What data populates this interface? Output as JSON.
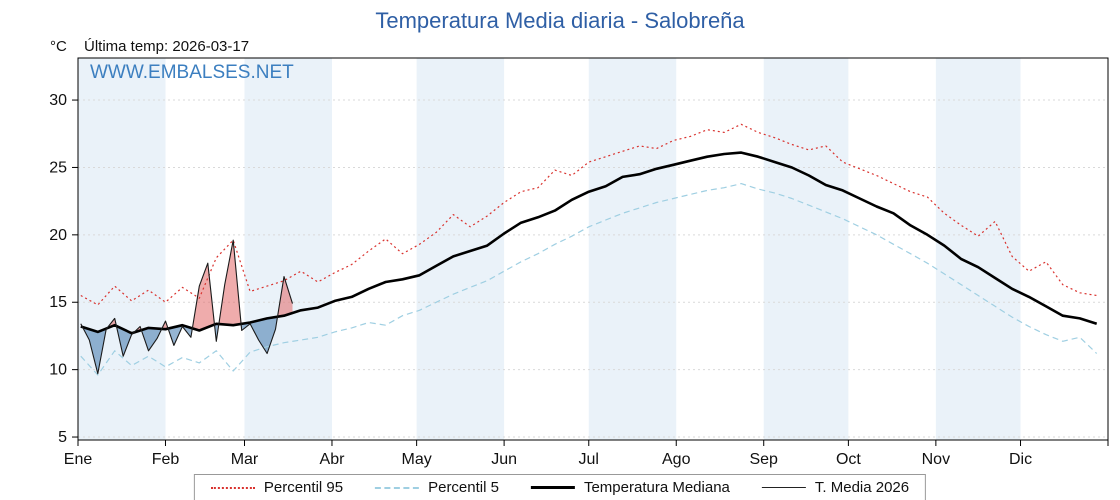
{
  "header": {
    "title": "Temperatura Media diaria - Salobreña",
    "unit_label": "°C",
    "last_temp_label": "Última temp: 2026-03-17",
    "watermark": "WWW.EMBALSES.NET"
  },
  "legend": {
    "items": [
      {
        "label": "Percentil 95"
      },
      {
        "label": "Percentil 5"
      },
      {
        "label": "Temperatura Mediana"
      },
      {
        "label": "T. Media 2026"
      }
    ]
  },
  "chart_data": {
    "type": "line",
    "title": "Temperatura Media diaria - Salobreña",
    "xlabel": "",
    "ylabel": "°C",
    "ylim": [
      4.78,
      33.12
    ],
    "yticks": [
      5,
      10,
      15,
      20,
      25,
      30
    ],
    "xticklabels": [
      "Ene",
      "Feb",
      "Mar",
      "Abr",
      "May",
      "Jun",
      "Jul",
      "Ago",
      "Sep",
      "Oct",
      "Nov",
      "Dic"
    ],
    "month_start_days": [
      0,
      31,
      59,
      90,
      120,
      151,
      181,
      212,
      243,
      273,
      304,
      334
    ],
    "days_in_year": 365,
    "grid": true,
    "legend_position": "bottom",
    "band_color": "#eaf2f9",
    "grid_color": "#d9d9d9",
    "frame_color": "#000000",
    "fills": {
      "between": "T. Media 2026 vs Temperatura Mediana",
      "above_color": "#e26868",
      "below_color": "#3f78ad",
      "opacity": 0.55
    },
    "series": [
      {
        "name": "Percentil 95",
        "color": "#d9322e",
        "style": "dotted",
        "width": 1.2,
        "x": [
          1,
          7,
          13,
          19,
          25,
          31,
          37,
          43,
          49,
          55,
          61,
          67,
          73,
          79,
          85,
          91,
          97,
          103,
          109,
          115,
          121,
          127,
          133,
          139,
          145,
          151,
          157,
          163,
          169,
          175,
          181,
          187,
          193,
          199,
          205,
          211,
          217,
          223,
          229,
          235,
          241,
          247,
          253,
          259,
          265,
          271,
          277,
          283,
          289,
          295,
          301,
          307,
          313,
          319,
          325,
          331,
          337,
          343,
          349,
          355,
          361
        ],
        "values": [
          15.5,
          14.8,
          16.2,
          15.1,
          15.9,
          15.0,
          16.1,
          15.3,
          18.3,
          19.6,
          15.8,
          16.2,
          16.6,
          17.3,
          16.5,
          17.2,
          17.8,
          18.8,
          19.7,
          18.6,
          19.3,
          20.2,
          21.5,
          20.6,
          21.4,
          22.4,
          23.2,
          23.5,
          24.8,
          24.4,
          25.4,
          25.8,
          26.2,
          26.6,
          26.4,
          27.0,
          27.3,
          27.8,
          27.6,
          28.2,
          27.6,
          27.2,
          26.7,
          26.3,
          26.6,
          25.4,
          24.9,
          24.4,
          23.8,
          23.2,
          22.8,
          21.6,
          20.7,
          19.9,
          21.0,
          18.4,
          17.3,
          18.0,
          16.3,
          15.7,
          15.5
        ]
      },
      {
        "name": "Percentil 5",
        "color": "#9fcfe2",
        "style": "dashed",
        "width": 1.2,
        "x": [
          1,
          7,
          13,
          19,
          25,
          31,
          37,
          43,
          49,
          55,
          61,
          67,
          73,
          79,
          85,
          91,
          97,
          103,
          109,
          115,
          121,
          127,
          133,
          139,
          145,
          151,
          157,
          163,
          169,
          175,
          181,
          187,
          193,
          199,
          205,
          211,
          217,
          223,
          229,
          235,
          241,
          247,
          253,
          259,
          265,
          271,
          277,
          283,
          289,
          295,
          301,
          307,
          313,
          319,
          325,
          331,
          337,
          343,
          349,
          355,
          361
        ],
        "values": [
          11.0,
          9.6,
          11.4,
          10.3,
          11.0,
          10.2,
          10.9,
          10.5,
          11.4,
          9.9,
          11.3,
          11.7,
          12.0,
          12.2,
          12.4,
          12.8,
          13.1,
          13.5,
          13.3,
          14.0,
          14.4,
          15.0,
          15.6,
          16.1,
          16.6,
          17.3,
          18.0,
          18.6,
          19.3,
          19.9,
          20.6,
          21.1,
          21.6,
          22.0,
          22.4,
          22.7,
          23.0,
          23.3,
          23.5,
          23.8,
          23.4,
          23.1,
          22.7,
          22.2,
          21.7,
          21.2,
          20.6,
          20.0,
          19.3,
          18.6,
          17.9,
          17.1,
          16.3,
          15.5,
          14.7,
          13.9,
          13.2,
          12.6,
          12.1,
          12.4,
          11.2
        ]
      },
      {
        "name": "Temperatura Mediana",
        "color": "#000000",
        "style": "solid",
        "width": 2.6,
        "x": [
          1,
          7,
          13,
          19,
          25,
          31,
          37,
          43,
          49,
          55,
          61,
          67,
          73,
          79,
          85,
          91,
          97,
          103,
          109,
          115,
          121,
          127,
          133,
          139,
          145,
          151,
          157,
          163,
          169,
          175,
          181,
          187,
          193,
          199,
          205,
          211,
          217,
          223,
          229,
          235,
          241,
          247,
          253,
          259,
          265,
          271,
          277,
          283,
          289,
          295,
          301,
          307,
          313,
          319,
          325,
          331,
          337,
          343,
          349,
          355,
          361
        ],
        "values": [
          13.2,
          12.8,
          13.3,
          12.7,
          13.1,
          13.0,
          13.3,
          12.9,
          13.4,
          13.3,
          13.5,
          13.8,
          14.0,
          14.4,
          14.6,
          15.1,
          15.4,
          16.0,
          16.5,
          16.7,
          17.0,
          17.7,
          18.4,
          18.8,
          19.2,
          20.1,
          20.9,
          21.3,
          21.8,
          22.6,
          23.2,
          23.6,
          24.3,
          24.5,
          24.9,
          25.2,
          25.5,
          25.8,
          26.0,
          26.1,
          25.8,
          25.4,
          25.0,
          24.4,
          23.7,
          23.3,
          22.7,
          22.1,
          21.6,
          20.7,
          20.0,
          19.2,
          18.2,
          17.6,
          16.8,
          16.0,
          15.4,
          14.7,
          14.0,
          13.8,
          13.4
        ]
      },
      {
        "name": "T. Media 2026",
        "color": "#1a1a1a",
        "style": "solid",
        "width": 1.1,
        "x": [
          1,
          4,
          7,
          10,
          13,
          16,
          19,
          22,
          25,
          28,
          31,
          34,
          37,
          40,
          43,
          46,
          49,
          52,
          55,
          58,
          61,
          64,
          67,
          70,
          73,
          76
        ],
        "values": [
          13.4,
          12.2,
          9.7,
          13.0,
          13.8,
          11.0,
          12.6,
          13.2,
          11.4,
          12.3,
          13.6,
          11.8,
          13.2,
          12.4,
          16.2,
          17.9,
          12.1,
          16.3,
          19.6,
          12.9,
          13.4,
          12.2,
          11.2,
          13.0,
          16.9,
          14.9
        ]
      }
    ]
  }
}
